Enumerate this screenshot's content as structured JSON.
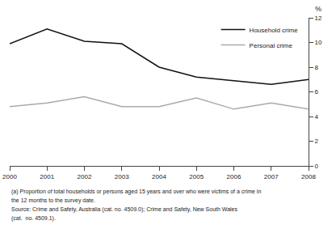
{
  "chart_data": {
    "type": "line",
    "x": [
      2000,
      2001,
      2002,
      2003,
      2004,
      2005,
      2006,
      2007,
      2008
    ],
    "series": [
      {
        "name": "Household crime",
        "color": "#111111",
        "values": [
          9.9,
          11.1,
          10.1,
          9.9,
          8.0,
          7.2,
          6.9,
          6.6,
          7.0
        ]
      },
      {
        "name": "Personal crime",
        "color": "#aaaaaa",
        "values": [
          4.8,
          5.1,
          5.6,
          4.8,
          4.8,
          5.5,
          4.6,
          5.1,
          4.6
        ]
      }
    ],
    "xlim": [
      2000,
      2008
    ],
    "xticks": [
      2000,
      2001,
      2002,
      2003,
      2004,
      2005,
      2006,
      2007,
      2008
    ],
    "ylim": [
      0,
      12
    ],
    "yticks": [
      0,
      2,
      4,
      6,
      8,
      10,
      12
    ],
    "ylabel": "%",
    "grid": false,
    "legend": "upper right",
    "annotations": [
      "(a) Proportion of total households or persons aged 15 years and over who were victims of a crime in",
      "the 12 months to the survey date.",
      "Source: Crime and Safety, Australia (cat. no. 4509.0); Crime and Safety, New South Wales",
      "(cat.  no. 4509.1)."
    ]
  }
}
